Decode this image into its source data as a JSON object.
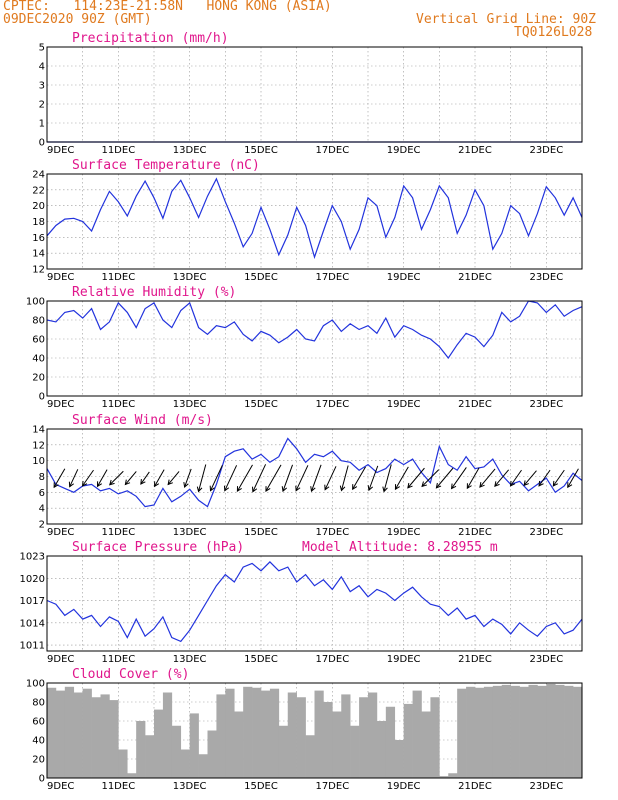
{
  "header": {
    "line1": "CPTEC:   114:23E-21:58N   HONG KONG (ASIA)",
    "line2": "09DEC2020 90Z (GMT)",
    "right1": "Vertical Grid Line: 90Z",
    "right2": "TQ0126L028"
  },
  "x_tick_labels": [
    "9DEC",
    "11DEC",
    "13DEC",
    "15DEC",
    "17DEC",
    "19DEC",
    "21DEC",
    "23DEC"
  ],
  "chart_data": [
    {
      "id": "precip",
      "type": "line",
      "title": "Precipitation (mm/h)",
      "ylim": [
        0,
        5
      ],
      "yticks": [
        0,
        1,
        2,
        3,
        4,
        5
      ],
      "xlim": [
        0,
        15
      ],
      "x": [
        0,
        15
      ],
      "values": [
        0,
        0
      ]
    },
    {
      "id": "temp",
      "type": "line",
      "title": "Surface Temperature (nC)",
      "ylim": [
        12,
        24
      ],
      "yticks": [
        12,
        14,
        16,
        18,
        20,
        22,
        24
      ],
      "xlim": [
        0,
        15
      ],
      "x": [
        0,
        0.25,
        0.5,
        0.75,
        1,
        1.25,
        1.5,
        1.75,
        2,
        2.25,
        2.5,
        2.75,
        3,
        3.25,
        3.5,
        3.75,
        4,
        4.25,
        4.5,
        4.75,
        5,
        5.25,
        5.5,
        5.75,
        6,
        6.25,
        6.5,
        6.75,
        7,
        7.25,
        7.5,
        7.75,
        8,
        8.25,
        8.5,
        8.75,
        9,
        9.25,
        9.5,
        9.75,
        10,
        10.25,
        10.5,
        10.75,
        11,
        11.25,
        11.5,
        11.75,
        12,
        12.25,
        12.5,
        12.75,
        13,
        13.25,
        13.5,
        13.75,
        14,
        14.25,
        14.5,
        14.75,
        15
      ],
      "values": [
        16.2,
        17.5,
        18.3,
        18.4,
        18,
        16.8,
        19.5,
        21.8,
        20.5,
        18.7,
        21.2,
        23.1,
        21,
        18.4,
        21.8,
        23.2,
        21,
        18.5,
        21.2,
        23.4,
        20.5,
        17.8,
        14.8,
        16.5,
        19.8,
        17,
        13.8,
        16.3,
        19.8,
        17.5,
        13.5,
        16.8,
        20,
        18,
        14.5,
        17,
        21,
        20,
        16,
        18.5,
        22.5,
        21,
        17,
        19.5,
        22.5,
        21,
        16.5,
        18.8,
        22,
        20,
        14.5,
        16.5,
        20,
        19,
        16.2,
        19,
        22.4,
        21,
        18.8,
        21,
        18.5
      ],
      "series_color": "#2233dd"
    },
    {
      "id": "rh",
      "type": "line",
      "title": "Relative Humidity (%)",
      "ylim": [
        0,
        100
      ],
      "yticks": [
        0,
        20,
        40,
        60,
        80,
        100
      ],
      "xlim": [
        0,
        15
      ],
      "x": [
        0,
        0.25,
        0.5,
        0.75,
        1,
        1.25,
        1.5,
        1.75,
        2,
        2.25,
        2.5,
        2.75,
        3,
        3.25,
        3.5,
        3.75,
        4,
        4.25,
        4.5,
        4.75,
        5,
        5.25,
        5.5,
        5.75,
        6,
        6.25,
        6.5,
        6.75,
        7,
        7.25,
        7.5,
        7.75,
        8,
        8.25,
        8.5,
        8.75,
        9,
        9.25,
        9.5,
        9.75,
        10,
        10.25,
        10.5,
        10.75,
        11,
        11.25,
        11.5,
        11.75,
        12,
        12.25,
        12.5,
        12.75,
        13,
        13.25,
        13.5,
        13.75,
        14,
        14.25,
        14.5,
        14.75,
        15
      ],
      "values": [
        80,
        78,
        88,
        90,
        82,
        92,
        70,
        78,
        98,
        88,
        72,
        92,
        98,
        80,
        72,
        90,
        98,
        72,
        65,
        74,
        72,
        78,
        65,
        58,
        68,
        64,
        56,
        62,
        70,
        60,
        58,
        74,
        80,
        68,
        76,
        70,
        74,
        66,
        82,
        62,
        74,
        70,
        64,
        60,
        52,
        40,
        54,
        66,
        62,
        52,
        64,
        88,
        78,
        84,
        100,
        98,
        88,
        96,
        84,
        90,
        94
      ],
      "series_color": "#2233dd"
    },
    {
      "id": "wind",
      "type": "line",
      "title": "Surface Wind (m/s)",
      "ylim": [
        2,
        14
      ],
      "yticks": [
        2,
        4,
        6,
        8,
        10,
        12,
        14
      ],
      "xlim": [
        0,
        15
      ],
      "x": [
        0,
        0.25,
        0.5,
        0.75,
        1,
        1.25,
        1.5,
        1.75,
        2,
        2.25,
        2.5,
        2.75,
        3,
        3.25,
        3.5,
        3.75,
        4,
        4.25,
        4.5,
        4.75,
        5,
        5.25,
        5.5,
        5.75,
        6,
        6.25,
        6.5,
        6.75,
        7,
        7.25,
        7.5,
        7.75,
        8,
        8.25,
        8.5,
        8.75,
        9,
        9.25,
        9.5,
        9.75,
        10,
        10.25,
        10.5,
        10.75,
        11,
        11.25,
        11.5,
        11.75,
        12,
        12.25,
        12.5,
        12.75,
        13,
        13.25,
        13.5,
        13.75,
        14,
        14.25,
        14.5,
        14.75,
        15
      ],
      "values": [
        9,
        7,
        6.5,
        6,
        6.8,
        7,
        6.2,
        6.5,
        5.8,
        6.2,
        5.5,
        4.2,
        4.4,
        6.5,
        4.8,
        5.5,
        6.4,
        5,
        4.2,
        7,
        10.5,
        11.2,
        11.5,
        10.2,
        10.8,
        9.8,
        10.5,
        12.8,
        11.5,
        9.8,
        10.8,
        10.5,
        11.2,
        10,
        9.8,
        8.8,
        9.5,
        8.5,
        9,
        10.2,
        9.5,
        10.2,
        8.5,
        7.2,
        11.8,
        9.5,
        8.8,
        10.5,
        9,
        9.2,
        10.2,
        8.2,
        7,
        7.4,
        6.2,
        7,
        7.8,
        6,
        6.8,
        8.4,
        7.5
      ],
      "series_color": "#2233dd",
      "wind_vectors": [
        {
          "x": 0.35,
          "speed": 7,
          "dir_deg": 30
        },
        {
          "x": 0.75,
          "speed": 6,
          "dir_deg": 25
        },
        {
          "x": 1.15,
          "speed": 6,
          "dir_deg": 35
        },
        {
          "x": 1.55,
          "speed": 6,
          "dir_deg": 30
        },
        {
          "x": 1.95,
          "speed": 6,
          "dir_deg": 45
        },
        {
          "x": 2.35,
          "speed": 5,
          "dir_deg": 40
        },
        {
          "x": 2.75,
          "speed": 4,
          "dir_deg": 35
        },
        {
          "x": 3.15,
          "speed": 6,
          "dir_deg": 30
        },
        {
          "x": 3.55,
          "speed": 5,
          "dir_deg": 40
        },
        {
          "x": 3.95,
          "speed": 6,
          "dir_deg": 20
        },
        {
          "x": 4.35,
          "speed": 10,
          "dir_deg": 15
        },
        {
          "x": 4.75,
          "speed": 10,
          "dir_deg": 25
        },
        {
          "x": 5.15,
          "speed": 10,
          "dir_deg": 25
        },
        {
          "x": 5.55,
          "speed": 11,
          "dir_deg": 30
        },
        {
          "x": 5.95,
          "speed": 11,
          "dir_deg": 25
        },
        {
          "x": 6.35,
          "speed": 11,
          "dir_deg": 30
        },
        {
          "x": 6.75,
          "speed": 10,
          "dir_deg": 20
        },
        {
          "x": 7.15,
          "speed": 10,
          "dir_deg": 25
        },
        {
          "x": 7.55,
          "speed": 10,
          "dir_deg": 20
        },
        {
          "x": 7.95,
          "speed": 9,
          "dir_deg": 25
        },
        {
          "x": 8.35,
          "speed": 9,
          "dir_deg": 15
        },
        {
          "x": 8.75,
          "speed": 9,
          "dir_deg": 30
        },
        {
          "x": 9.15,
          "speed": 9,
          "dir_deg": 20
        },
        {
          "x": 9.55,
          "speed": 10,
          "dir_deg": 15
        },
        {
          "x": 9.95,
          "speed": 9,
          "dir_deg": 30
        },
        {
          "x": 10.35,
          "speed": 9,
          "dir_deg": 40
        },
        {
          "x": 10.75,
          "speed": 8,
          "dir_deg": 45
        },
        {
          "x": 11.15,
          "speed": 9,
          "dir_deg": 40
        },
        {
          "x": 11.55,
          "speed": 9,
          "dir_deg": 35
        },
        {
          "x": 11.95,
          "speed": 8,
          "dir_deg": 30
        },
        {
          "x": 12.35,
          "speed": 8,
          "dir_deg": 40
        },
        {
          "x": 12.75,
          "speed": 7,
          "dir_deg": 40
        },
        {
          "x": 13.15,
          "speed": 6,
          "dir_deg": 35
        },
        {
          "x": 13.55,
          "speed": 6,
          "dir_deg": 40
        },
        {
          "x": 13.95,
          "speed": 6,
          "dir_deg": 35
        },
        {
          "x": 14.35,
          "speed": 6,
          "dir_deg": 35
        },
        {
          "x": 14.75,
          "speed": 7,
          "dir_deg": 30
        }
      ]
    },
    {
      "id": "pressure",
      "type": "line",
      "title": "Surface Pressure (hPa)",
      "subtitle": "Model Altitude: 8.28955 m",
      "ylim": [
        1010.2,
        1023
      ],
      "yticks": [
        1011,
        1014,
        1017,
        1020,
        1023
      ],
      "xlim": [
        0,
        15
      ],
      "x": [
        0,
        0.25,
        0.5,
        0.75,
        1,
        1.25,
        1.5,
        1.75,
        2,
        2.25,
        2.5,
        2.75,
        3,
        3.25,
        3.5,
        3.75,
        4,
        4.25,
        4.5,
        4.75,
        5,
        5.25,
        5.5,
        5.75,
        6,
        6.25,
        6.5,
        6.75,
        7,
        7.25,
        7.5,
        7.75,
        8,
        8.25,
        8.5,
        8.75,
        9,
        9.25,
        9.5,
        9.75,
        10,
        10.25,
        10.5,
        10.75,
        11,
        11.25,
        11.5,
        11.75,
        12,
        12.25,
        12.5,
        12.75,
        13,
        13.25,
        13.5,
        13.75,
        14,
        14.25,
        14.5,
        14.75,
        15
      ],
      "values": [
        1017,
        1016.5,
        1015,
        1015.8,
        1014.5,
        1015,
        1013.5,
        1014.8,
        1014.2,
        1012,
        1014.5,
        1012.2,
        1013.2,
        1014.8,
        1012,
        1011.5,
        1013,
        1015,
        1017,
        1019,
        1020.5,
        1019.5,
        1021.5,
        1022,
        1021,
        1022.2,
        1021,
        1021.5,
        1019.5,
        1020.5,
        1019,
        1019.8,
        1018.5,
        1020.2,
        1018.2,
        1019,
        1017.5,
        1018.5,
        1018,
        1017,
        1018,
        1018.8,
        1017.5,
        1016.5,
        1016.2,
        1015,
        1016,
        1014.5,
        1015,
        1013.5,
        1014.5,
        1013.8,
        1012.5,
        1014,
        1013,
        1012.2,
        1013.5,
        1014,
        1012.5,
        1013,
        1014.5
      ],
      "series_color": "#2233dd"
    },
    {
      "id": "cloud",
      "type": "bar",
      "title": "Cloud Cover (%)",
      "ylim": [
        0,
        100
      ],
      "yticks": [
        0,
        20,
        40,
        60,
        80,
        100
      ],
      "xlim": [
        0,
        15
      ],
      "x": [
        0,
        0.25,
        0.5,
        0.75,
        1,
        1.25,
        1.5,
        1.75,
        2,
        2.25,
        2.5,
        2.75,
        3,
        3.25,
        3.5,
        3.75,
        4,
        4.25,
        4.5,
        4.75,
        5,
        5.25,
        5.5,
        5.75,
        6,
        6.25,
        6.5,
        6.75,
        7,
        7.25,
        7.5,
        7.75,
        8,
        8.25,
        8.5,
        8.75,
        9,
        9.25,
        9.5,
        9.75,
        10,
        10.25,
        10.5,
        10.75,
        11,
        11.25,
        11.5,
        11.75,
        12,
        12.25,
        12.5,
        12.75,
        13,
        13.25,
        13.5,
        13.75,
        14,
        14.25,
        14.5,
        14.75
      ],
      "values": [
        95,
        92,
        96,
        90,
        94,
        85,
        88,
        82,
        30,
        5,
        60,
        45,
        72,
        90,
        55,
        30,
        68,
        25,
        50,
        88,
        94,
        70,
        96,
        95,
        92,
        94,
        55,
        90,
        85,
        45,
        92,
        80,
        70,
        88,
        55,
        85,
        90,
        60,
        75,
        40,
        78,
        92,
        70,
        85,
        2,
        5,
        94,
        96,
        95,
        96,
        97,
        98,
        97,
        96,
        98,
        97,
        99,
        98,
        97,
        96
      ],
      "series_color": "#a9a9a9"
    }
  ]
}
